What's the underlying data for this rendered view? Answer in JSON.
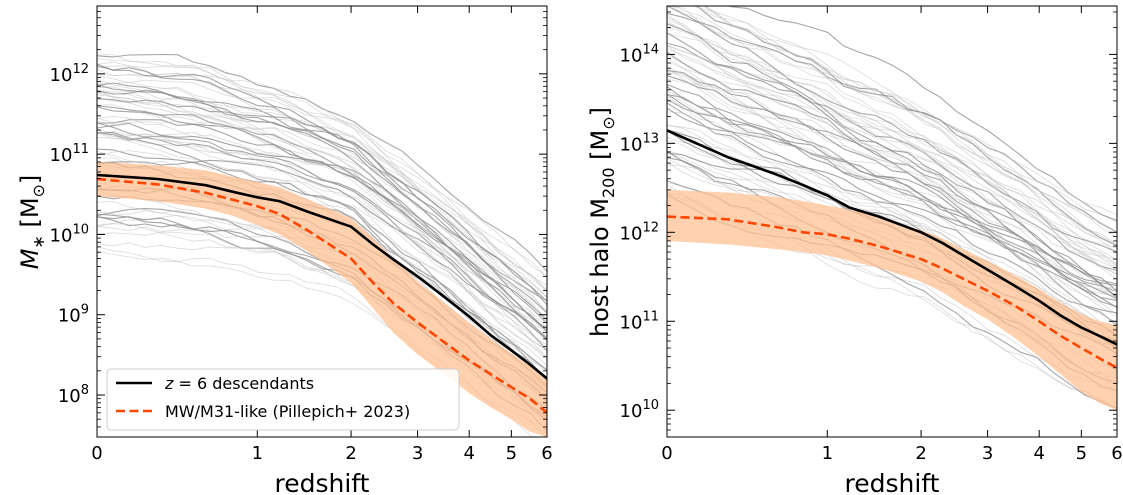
{
  "chart_data": [
    {
      "type": "line",
      "xlabel": "redshift",
      "ylabel": "M_* [M_⊙]",
      "xscale": "log(1+z)",
      "yscale": "log",
      "xlim": [
        0,
        6
      ],
      "ylim": [
        30000000.0,
        7000000000000.0
      ],
      "x_ticks": [
        "0",
        "1",
        "2",
        "3",
        "4",
        "5",
        "6"
      ],
      "y_ticks": [
        "10^8",
        "10^9",
        "10^10",
        "10^11",
        "10^12"
      ],
      "legend": {
        "placement": "lower-left",
        "entries": [
          "z = 6 descendants",
          "MW/M31-like (Pillepich+ 2023)"
        ]
      },
      "series": [
        {
          "name": "z = 6 descendants",
          "style": "solid",
          "color": "#000000",
          "x": [
            0,
            0.3,
            0.6,
            0.8,
            1.0,
            1.2,
            1.5,
            2.0,
            2.3,
            2.6,
            3.0,
            3.5,
            4.0,
            4.5,
            5.0,
            5.5,
            6.0
          ],
          "y": [
            55000000000.0,
            49000000000.0,
            41000000000.0,
            34000000000.0,
            29000000000.0,
            26000000000.0,
            19000000000.0,
            12500000000.0,
            7500000000.0,
            4900000000.0,
            3000000000.0,
            1650000000.0,
            950000000.0,
            550000000.0,
            360000000.0,
            240000000.0,
            160000000.0
          ]
        },
        {
          "name": "MW/M31-like (Pillepich+ 2023)",
          "style": "dashed",
          "color": "#ff4500",
          "x": [
            0,
            0.3,
            0.6,
            0.8,
            1.0,
            1.2,
            1.5,
            2.0,
            2.3,
            2.6,
            3.0,
            3.5,
            4.0,
            4.5,
            5.0,
            5.5,
            6.0
          ],
          "y": [
            49000000000.0,
            42000000000.0,
            33000000000.0,
            27000000000.0,
            22500000000.0,
            18000000000.0,
            11000000000.0,
            5000000000.0,
            2500000000.0,
            1400000000.0,
            800000000.0,
            450000000.0,
            270000000.0,
            180000000.0,
            125000000.0,
            90000000.0,
            60000000.0
          ],
          "band_low": [
            30000000000.0,
            26000000000.0,
            21000000000.0,
            17000000000.0,
            13000000000.0,
            10000000000.0,
            6000000000.0,
            2500000000.0,
            1200000000.0,
            600000000.0,
            320000000.0,
            180000000.0,
            105000000.0,
            70000000.0,
            50000000.0,
            35000000.0,
            30000000.0
          ],
          "band_high": [
            80000000000.0,
            73000000000.0,
            63000000000.0,
            52000000000.0,
            45000000000.0,
            39000000000.0,
            27000000000.0,
            16000000000.0,
            9000000000.0,
            5000000000.0,
            2600000000.0,
            1400000000.0,
            800000000.0,
            500000000.0,
            330000000.0,
            230000000.0,
            170000000.0
          ]
        }
      ]
    },
    {
      "type": "line",
      "xlabel": "redshift",
      "ylabel": "host halo M_200 [M_⊙]",
      "xscale": "log(1+z)",
      "yscale": "log",
      "xlim": [
        0,
        6
      ],
      "ylim": [
        5000000000.0,
        350000000000000.0
      ],
      "x_ticks": [
        "0",
        "1",
        "2",
        "3",
        "4",
        "5",
        "6"
      ],
      "y_ticks": [
        "10^10",
        "10^11",
        "10^12",
        "10^13",
        "10^14"
      ],
      "series": [
        {
          "name": "z = 6 descendants",
          "style": "solid",
          "color": "#000000",
          "x": [
            0,
            0.3,
            0.6,
            0.8,
            1.0,
            1.2,
            1.5,
            2.0,
            2.3,
            2.6,
            3.0,
            3.5,
            4.0,
            4.5,
            5.0,
            5.5,
            6.0
          ],
          "y": [
            14000000000000.0,
            7000000000000.0,
            4500000000000.0,
            3400000000000.0,
            2600000000000.0,
            1900000000000.0,
            1500000000000.0,
            1000000000000.0,
            750000000000.0,
            550000000000.0,
            380000000000.0,
            250000000000.0,
            170000000000.0,
            115000000000.0,
            85000000000.0,
            68000000000.0,
            55000000000.0
          ]
        },
        {
          "name": "MW/M31-like (Pillepich+ 2023)",
          "style": "dashed",
          "color": "#ff4500",
          "x": [
            0,
            0.3,
            0.6,
            0.8,
            1.0,
            1.2,
            1.5,
            2.0,
            2.3,
            2.6,
            3.0,
            3.5,
            4.0,
            4.5,
            5.0,
            5.5,
            6.0
          ],
          "y": [
            1500000000000.0,
            1400000000000.0,
            1150000000000.0,
            1000000000000.0,
            950000000000.0,
            850000000000.0,
            700000000000.0,
            500000000000.0,
            390000000000.0,
            300000000000.0,
            220000000000.0,
            150000000000.0,
            100000000000.0,
            68000000000.0,
            50000000000.0,
            38000000000.0,
            30000000000.0
          ],
          "band_low": [
            800000000000.0,
            730000000000.0,
            650000000000.0,
            600000000000.0,
            550000000000.0,
            480000000000.0,
            400000000000.0,
            280000000000.0,
            210000000000.0,
            150000000000.0,
            105000000000.0,
            65000000000.0,
            40000000000.0,
            25000000000.0,
            16000000000.0,
            12000000000.0,
            10000000000.0
          ],
          "band_high": [
            3000000000000.0,
            2800000000000.0,
            2500000000000.0,
            2250000000000.0,
            2000000000000.0,
            1800000000000.0,
            1500000000000.0,
            1050000000000.0,
            850000000000.0,
            650000000000.0,
            480000000000.0,
            330000000000.0,
            230000000000.0,
            160000000000.0,
            120000000000.0,
            100000000000.0,
            90000000000.0
          ]
        }
      ]
    }
  ]
}
